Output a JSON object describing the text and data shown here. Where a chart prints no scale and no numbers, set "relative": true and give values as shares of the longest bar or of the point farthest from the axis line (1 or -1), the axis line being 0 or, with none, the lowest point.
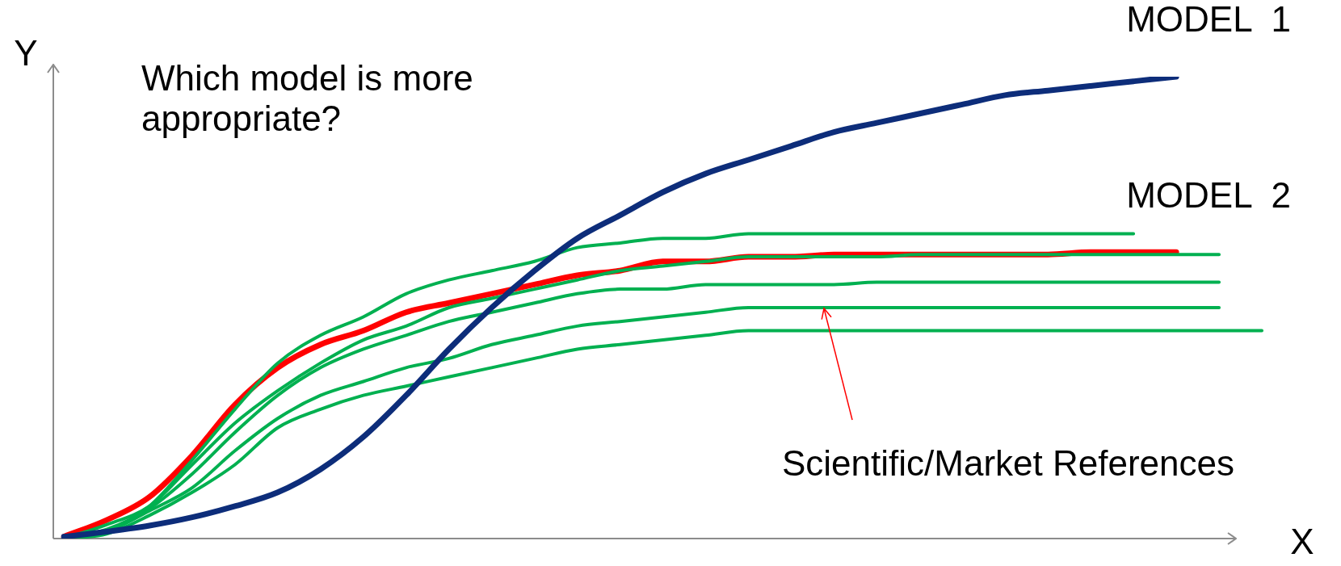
{
  "chart_data": {
    "type": "line",
    "relative": true,
    "xlabel": "X",
    "ylabel": "Y",
    "legend": false,
    "marker": "none",
    "annotations": [
      "Which model is more appropriate?",
      "Scientific/Market References"
    ],
    "categories": [
      null,
      null,
      null,
      null,
      null,
      null,
      null,
      null,
      null,
      null,
      null,
      null,
      null,
      null,
      null,
      null,
      null,
      null,
      null,
      null,
      null,
      null,
      null,
      null,
      null,
      null,
      null,
      null,
      null
    ],
    "series": [
      {
        "name": "MODEL  1",
        "color": "#0d2d7a",
        "values": [
          0.004,
          0.015,
          0.028,
          0.046,
          0.07,
          0.1,
          0.15,
          0.22,
          0.31,
          0.41,
          0.5,
          0.58,
          0.65,
          0.7,
          0.75,
          0.79,
          0.82,
          0.85,
          0.88,
          0.9,
          0.92,
          0.94,
          0.96,
          0.97,
          0.98,
          0.99,
          1,
          null,
          null
        ]
      },
      {
        "color": "#00b050",
        "values": [
          0,
          0.015,
          0.07,
          0.17,
          0.28,
          0.38,
          0.44,
          0.48,
          0.53,
          0.56,
          0.58,
          0.6,
          0.63,
          0.64,
          0.65,
          0.65,
          0.66,
          0.66,
          0.66,
          0.66,
          0.66,
          0.66,
          0.66,
          0.66,
          0.66,
          0.66,
          null,
          null,
          null
        ]
      },
      {
        "color": "#00b050",
        "values": [
          0,
          0.03,
          0.07,
          0.16,
          0.25,
          0.32,
          0.38,
          0.43,
          0.46,
          0.5,
          0.52,
          0.54,
          0.56,
          0.58,
          0.59,
          0.6,
          0.61,
          0.61,
          0.61,
          0.61,
          0.615,
          0.615,
          0.615,
          0.615,
          0.615,
          0.615,
          0.615,
          0.615,
          null
        ]
      },
      {
        "color": "#00b050",
        "values": [
          0,
          0.02,
          0.065,
          0.14,
          0.23,
          0.31,
          0.37,
          0.41,
          0.44,
          0.47,
          0.49,
          0.51,
          0.53,
          0.54,
          0.54,
          0.55,
          0.55,
          0.55,
          0.55,
          0.555,
          0.555,
          0.555,
          0.555,
          0.555,
          0.555,
          0.555,
          0.555,
          0.555,
          null
        ]
      },
      {
        "color": "#00b050",
        "values": [
          0,
          0.015,
          0.06,
          0.11,
          0.19,
          0.26,
          0.31,
          0.34,
          0.37,
          0.39,
          0.42,
          0.44,
          0.46,
          0.47,
          0.48,
          0.49,
          0.5,
          0.5,
          0.5,
          0.5,
          0.5,
          0.5,
          0.5,
          0.5,
          0.5,
          0.5,
          0.5,
          0.5,
          null
        ]
      },
      {
        "color": "#00b050",
        "values": [
          0,
          0.01,
          0.05,
          0.1,
          0.16,
          0.24,
          0.28,
          0.31,
          0.33,
          0.35,
          0.37,
          0.39,
          0.41,
          0.42,
          0.43,
          0.44,
          0.45,
          0.45,
          0.45,
          0.45,
          0.45,
          0.45,
          0.45,
          0.45,
          0.45,
          0.45,
          0.45,
          0.45,
          0.45
        ]
      },
      {
        "name": "MODEL  2",
        "color": "#ff0000",
        "values": [
          0.004,
          0.04,
          0.09,
          0.18,
          0.29,
          0.37,
          0.42,
          0.45,
          0.49,
          0.51,
          0.53,
          0.55,
          0.57,
          0.58,
          0.6,
          0.6,
          0.61,
          0.61,
          0.615,
          0.615,
          0.615,
          0.615,
          0.615,
          0.615,
          0.62,
          0.62,
          0.62,
          null,
          null
        ]
      }
    ]
  }
}
